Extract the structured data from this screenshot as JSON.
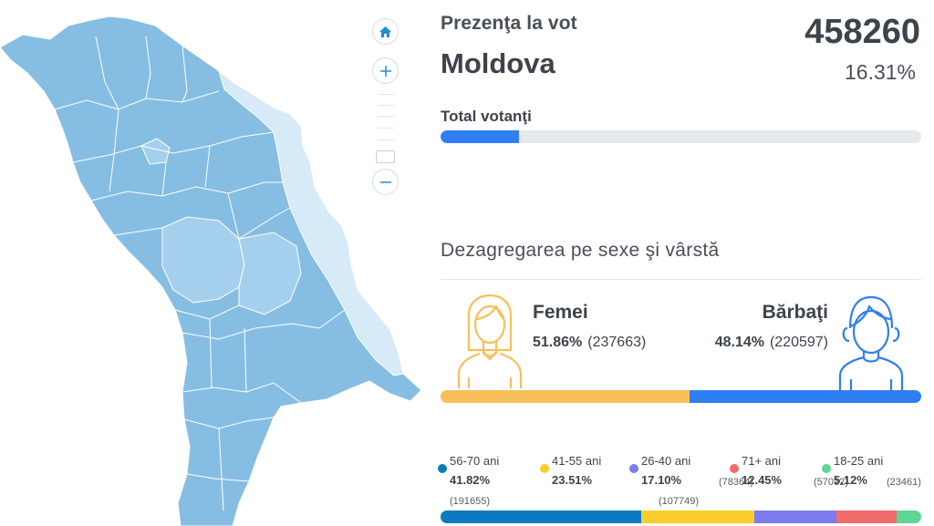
{
  "map": {
    "controls": {
      "home_icon": "home-icon",
      "zoom_in_icon": "plus-icon",
      "zoom_out_icon": "minus-icon"
    },
    "colors": {
      "dark": "#86bee3",
      "medium": "#a5d0ed",
      "light": "#d6eaf8",
      "border": "#ffffff"
    }
  },
  "header": {
    "title": "Prezenţa la vot",
    "region": "Moldova",
    "total": "458260",
    "percent": "16.31%"
  },
  "voters": {
    "label": "Total votanţi",
    "fill_fraction": 0.1631,
    "color": "#2f7ff3"
  },
  "breakdown": {
    "title": "Dezagregarea pe sexe şi vârstă",
    "female": {
      "label": "Femei",
      "percent": "51.86%",
      "count": "(237663)",
      "color": "#f8bf5a",
      "icon": "female-icon"
    },
    "male": {
      "label": "Bărbaţi",
      "percent": "48.14%",
      "count": "(220597)",
      "color": "#2f7ff3",
      "icon": "male-icon"
    },
    "gender_shares": [
      0.5186,
      0.4814
    ]
  },
  "age_groups": [
    {
      "label": "56-70 ani",
      "percent": "41.82%",
      "count": "(191655)",
      "share": 0.4182,
      "color": "#0a7bc2"
    },
    {
      "label": "41-55 ani",
      "percent": "23.51%",
      "count": "(107749)",
      "share": 0.2351,
      "color": "#f9cd2c"
    },
    {
      "label": "26-40 ani",
      "percent": "17.10%",
      "count": "(78364)",
      "share": 0.171,
      "color": "#7b7cf0"
    },
    {
      "label": "71+ ani",
      "percent": "12.45%",
      "count": "(57032)",
      "share": 0.1245,
      "color": "#f36b6b"
    },
    {
      "label": "18-25 ani",
      "percent": "5.12%",
      "count": "(23461)",
      "share": 0.0512,
      "color": "#5fd695"
    }
  ]
}
